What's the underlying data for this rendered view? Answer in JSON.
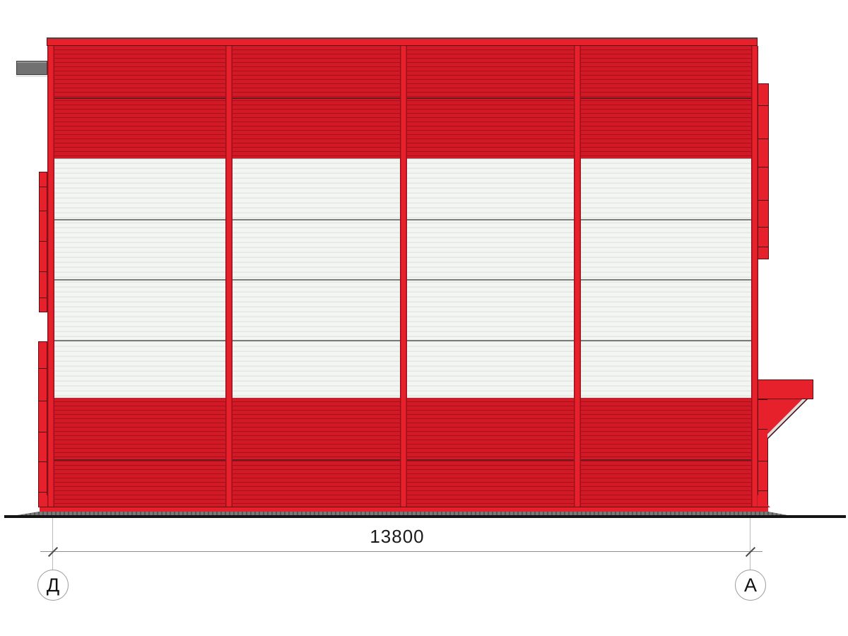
{
  "colors": {
    "red_accent": "#e7212c",
    "red_panel": "#d11a26",
    "red_stripe": "#a90f1b",
    "panel_white": "#f2f5f1",
    "panel_white_stripe": "#e2e8e2",
    "pipe_gray": "#717171",
    "base_gray": "#7a7a7a",
    "ground_black": "#141414",
    "dim_gray": "#8f8f8f",
    "text_black": "#1a1a1a"
  },
  "facade": {
    "bay_count": 4
  },
  "dimension": {
    "value": "13800"
  },
  "axes": [
    {
      "label": "Д"
    },
    {
      "label": "А"
    }
  ]
}
